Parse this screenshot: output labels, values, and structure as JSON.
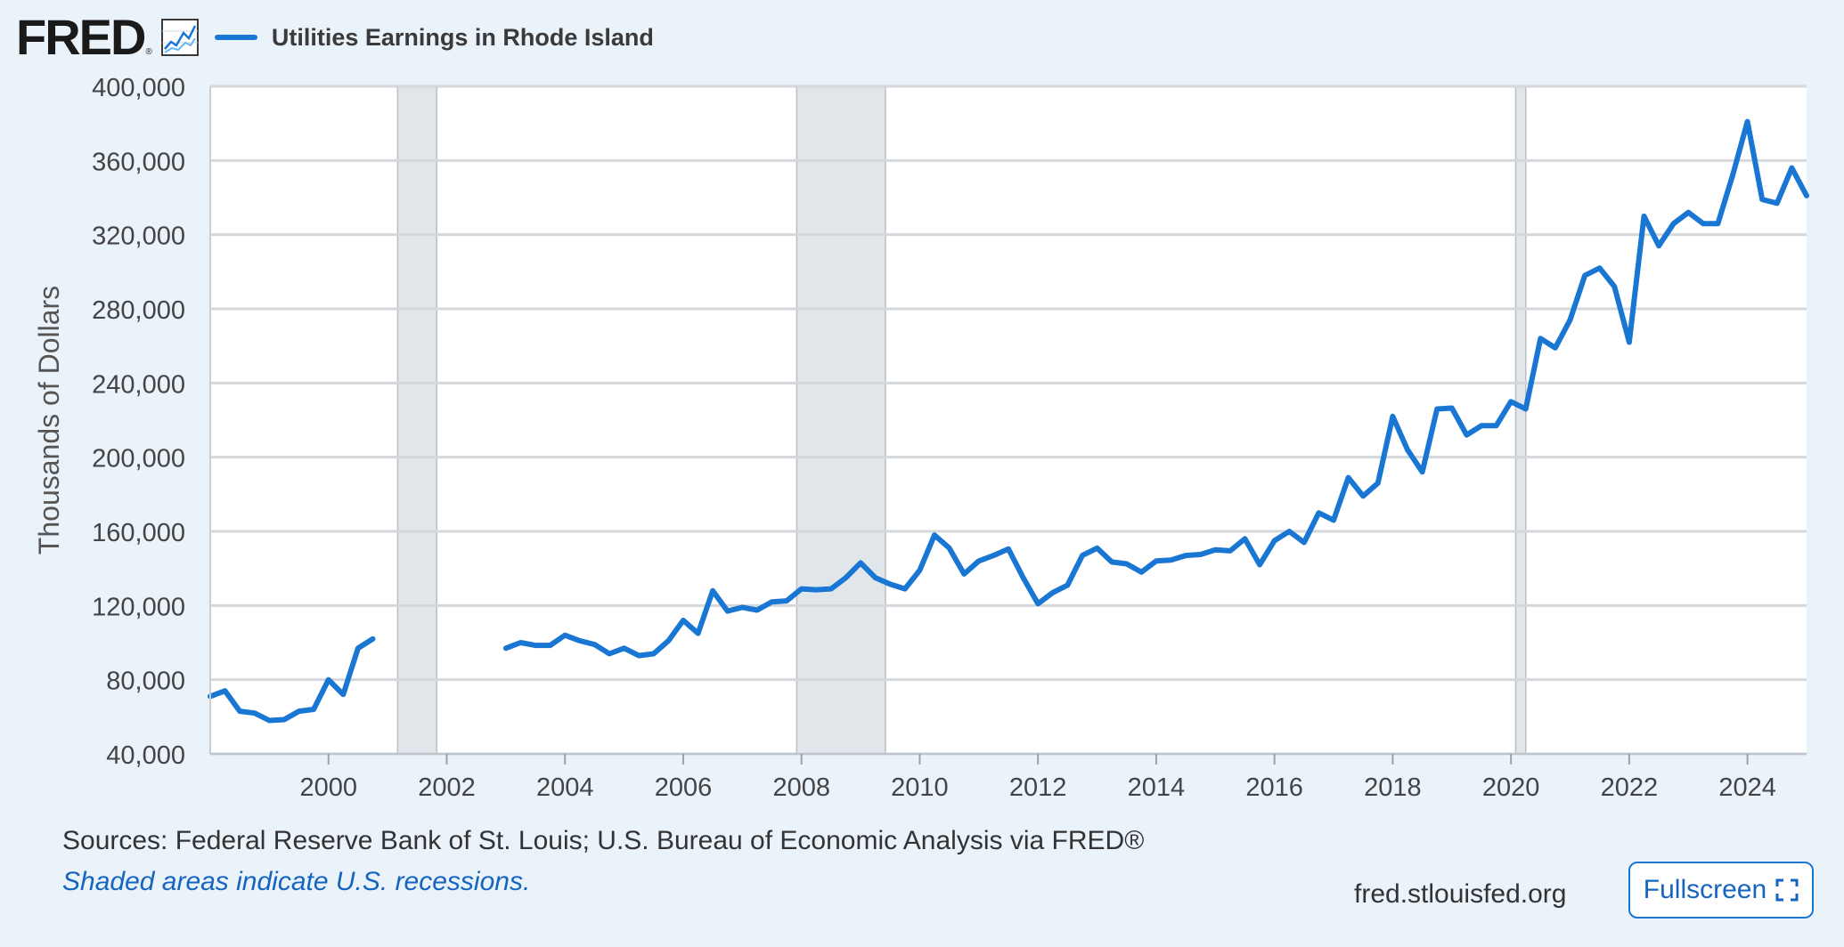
{
  "header": {
    "logo_text": "FRED",
    "logo_mark": "®",
    "graph_icon": "line-graph-icon",
    "series_title": "Utilities Earnings in Rhode Island",
    "series_color": "#1976d2"
  },
  "footer": {
    "sources": "Sources: Federal Reserve Bank of St. Louis; U.S. Bureau of Economic Analysis via FRED®",
    "recession_note": "Shaded areas indicate U.S. recessions.",
    "url": "fred.stlouisfed.org",
    "fullscreen_label": "Fullscreen",
    "fullscreen_icon": "expand-icon"
  },
  "chart_data": {
    "type": "line",
    "title": "Utilities Earnings in Rhode Island",
    "ylabel": "Thousands of Dollars",
    "xlabel": "",
    "ylim": [
      40000,
      400000
    ],
    "xlim": [
      1998.0,
      2025.0
    ],
    "y_ticks": [
      40000,
      80000,
      120000,
      160000,
      200000,
      240000,
      280000,
      320000,
      360000,
      400000
    ],
    "y_tick_labels": [
      "40,000",
      "80,000",
      "120,000",
      "160,000",
      "200,000",
      "240,000",
      "280,000",
      "320,000",
      "360,000",
      "400,000"
    ],
    "x_ticks": [
      2000,
      2002,
      2004,
      2006,
      2008,
      2010,
      2012,
      2014,
      2016,
      2018,
      2020,
      2022,
      2024
    ],
    "x_tick_labels": [
      "2000",
      "2002",
      "2004",
      "2006",
      "2008",
      "2010",
      "2012",
      "2014",
      "2016",
      "2018",
      "2020",
      "2022",
      "2024"
    ],
    "grid": true,
    "legend_position": "top-left",
    "series_color": "#1976d2",
    "recession_color": "#e1e6ea",
    "recessions": [
      [
        2001.17,
        2001.83
      ],
      [
        2007.92,
        2009.42
      ],
      [
        2020.08,
        2020.25
      ]
    ],
    "segments": [
      {
        "x": [
          1998.0,
          1998.25,
          1998.5,
          1998.75,
          1999.0,
          1999.25,
          1999.5,
          1999.75,
          2000.0,
          2000.25,
          2000.5,
          2000.75
        ],
        "y": [
          71000,
          74000,
          63000,
          62000,
          58000,
          58500,
          63000,
          64000,
          80000,
          72000,
          97000,
          102000
        ]
      },
      {
        "x": [
          2003.0,
          2003.25,
          2003.5,
          2003.75,
          2004.0,
          2004.25,
          2004.5,
          2004.75,
          2005.0,
          2005.25,
          2005.5,
          2005.75,
          2006.0,
          2006.25,
          2006.5,
          2006.75,
          2007.0,
          2007.25,
          2007.5,
          2007.75,
          2008.0,
          2008.25,
          2008.5,
          2008.75,
          2009.0,
          2009.25,
          2009.5,
          2009.75,
          2010.0,
          2010.25,
          2010.5,
          2010.75,
          2011.0,
          2011.25,
          2011.5,
          2011.75,
          2012.0,
          2012.25,
          2012.5,
          2012.75,
          2013.0,
          2013.25,
          2013.5,
          2013.75,
          2014.0,
          2014.25,
          2014.5,
          2014.75,
          2015.0,
          2015.25,
          2015.5,
          2015.75,
          2016.0,
          2016.25,
          2016.5,
          2016.75,
          2017.0,
          2017.25,
          2017.5,
          2017.75,
          2018.0,
          2018.25,
          2018.5,
          2018.75,
          2019.0,
          2019.25,
          2019.5,
          2019.75,
          2020.0,
          2020.25,
          2020.5,
          2020.75,
          2021.0,
          2021.25,
          2021.5,
          2021.75,
          2022.0,
          2022.25,
          2022.5,
          2022.75,
          2023.0,
          2023.25,
          2023.5,
          2023.75,
          2024.0,
          2024.25,
          2024.5,
          2024.75,
          2025.0
        ],
        "y": [
          97000,
          100000,
          98500,
          98500,
          104000,
          101000,
          99000,
          94000,
          97000,
          93000,
          94000,
          101000,
          112000,
          105000,
          128000,
          117000,
          119000,
          117500,
          122000,
          122500,
          129000,
          128500,
          129000,
          135000,
          143000,
          135000,
          131500,
          129000,
          139000,
          158000,
          151000,
          137000,
          144000,
          147000,
          150500,
          135000,
          121000,
          127000,
          131000,
          147000,
          151000,
          143500,
          142500,
          138000,
          144000,
          144500,
          147000,
          147500,
          150000,
          149500,
          156000,
          142000,
          155000,
          160000,
          154000,
          170000,
          166000,
          189000,
          179000,
          186000,
          222000,
          204000,
          192000,
          226000,
          226500,
          212000,
          217000,
          217000,
          230000,
          226000,
          264000,
          259000,
          274000,
          298000,
          302000,
          292000,
          262000,
          330000,
          314000,
          326000,
          332000,
          326000,
          326000,
          352000,
          381000,
          339000,
          337000,
          356000,
          341000
        ]
      }
    ]
  }
}
